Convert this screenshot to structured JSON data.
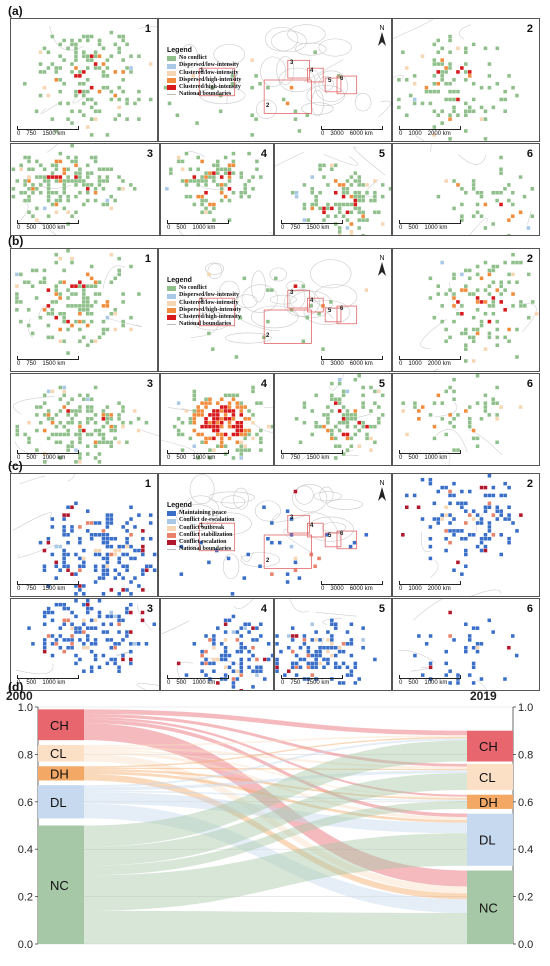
{
  "panels": [
    {
      "label": "(a)",
      "scheme": "intensity",
      "legend": {
        "title": "Legend",
        "items": [
          {
            "label": "No conflict",
            "color": "#8fbf8a"
          },
          {
            "label": "Dispersed/low-intensity",
            "color": "#a9c8e6"
          },
          {
            "label": "Clustered/low-intensity",
            "color": "#f7d6b3"
          },
          {
            "label": "Dispersed/high-intensity",
            "color": "#f08c3c"
          },
          {
            "label": "Clustered/high-intensity",
            "color": "#d7191c"
          },
          {
            "label": "National boundaries",
            "color": "#bbbbbb"
          }
        ]
      },
      "map_numbers": [
        "1",
        "2",
        "3",
        "4",
        "5",
        "6"
      ],
      "world_box_labels": [
        "1",
        "2",
        "3",
        "4",
        "5",
        "6"
      ],
      "scalebars": {
        "m1": [
          "0",
          "750",
          "1500 km"
        ],
        "world": [
          "0",
          "3000",
          "6000 km"
        ],
        "m2": [
          "0",
          "1000",
          "2000 km"
        ],
        "m3": [
          "0",
          "500",
          "1000 km"
        ],
        "m4": [
          "0",
          "500",
          "1000 km"
        ],
        "m5": [
          "0",
          "750",
          "1500 km"
        ],
        "m6": [
          "0",
          "500",
          "1000 km"
        ]
      }
    },
    {
      "label": "(b)",
      "scheme": "intensity",
      "legend": {
        "title": "Legend",
        "items": [
          {
            "label": "No conflict",
            "color": "#8fbf8a"
          },
          {
            "label": "Dispersed/low-intensity",
            "color": "#a9c8e6"
          },
          {
            "label": "Clustered/low-intensity",
            "color": "#f7d6b3"
          },
          {
            "label": "Dispersed/high-intensity",
            "color": "#f08c3c"
          },
          {
            "label": "Clustered/high-intensity",
            "color": "#d7191c"
          },
          {
            "label": "National boundaries",
            "color": "#bbbbbb"
          }
        ]
      },
      "map_numbers": [
        "1",
        "2",
        "3",
        "4",
        "5",
        "6"
      ],
      "world_box_labels": [
        "1",
        "2",
        "3",
        "4",
        "5",
        "6"
      ],
      "scalebars": {
        "m1": [
          "0",
          "750",
          "1500 km"
        ],
        "world": [
          "0",
          "3000",
          "6000 km"
        ],
        "m2": [
          "0",
          "1000",
          "2000 km"
        ],
        "m3": [
          "0",
          "500",
          "1000 km"
        ],
        "m4": [
          "0",
          "500",
          "1000 km"
        ],
        "m5": [
          "0",
          "750",
          "1500 km"
        ],
        "m6": [
          "0",
          "500",
          "1000 km"
        ]
      }
    },
    {
      "label": "(c)",
      "scheme": "change",
      "legend": {
        "title": "Legend",
        "items": [
          {
            "label": "Maintaining peace",
            "color": "#3a6fc9"
          },
          {
            "label": "Conflict de-escalation",
            "color": "#a9c8e6"
          },
          {
            "label": "Conflict outbreak",
            "color": "#f7d6b3"
          },
          {
            "label": "Conflict stabilization",
            "color": "#e8826a"
          },
          {
            "label": "Conflict escalation",
            "color": "#b2182b"
          },
          {
            "label": "National boundaries",
            "color": "#bbbbbb"
          }
        ]
      },
      "map_numbers": [
        "1",
        "2",
        "3",
        "4",
        "5",
        "6"
      ],
      "world_box_labels": [
        "1",
        "2",
        "3",
        "4",
        "5",
        "6"
      ],
      "scalebars": {
        "m1": [
          "0",
          "750",
          "1500 km"
        ],
        "world": [
          "0",
          "3000",
          "6000 km"
        ],
        "m2": [
          "0",
          "1000",
          "2000 km"
        ],
        "m3": [
          "0",
          "500",
          "1000 km"
        ],
        "m4": [
          "0",
          "500",
          "1000 km"
        ],
        "m5": [
          "0",
          "750",
          "1500 km"
        ],
        "m6": [
          "0",
          "500",
          "1000 km"
        ]
      }
    }
  ],
  "north_label": "N",
  "sankey": {
    "label": "(d)",
    "left_year": "2000",
    "right_year": "2019",
    "axis_ticks": [
      "0.0",
      "0.2",
      "0.4",
      "0.6",
      "0.8",
      "1.0"
    ],
    "left_nodes": [
      {
        "name": "CH",
        "from": 0.86,
        "to": 0.99,
        "color": "#e8676e"
      },
      {
        "name": "CL",
        "from": 0.77,
        "to": 0.84,
        "color": "#fbe0c6"
      },
      {
        "name": "DH",
        "from": 0.69,
        "to": 0.75,
        "color": "#f3a865"
      },
      {
        "name": "DL",
        "from": 0.53,
        "to": 0.67,
        "color": "#c6d9ee"
      },
      {
        "name": "NC",
        "from": 0.0,
        "to": 0.5,
        "color": "#a7c8a6"
      }
    ],
    "right_nodes": [
      {
        "name": "CH",
        "from": 0.77,
        "to": 0.9,
        "color": "#e8676e"
      },
      {
        "name": "CL",
        "from": 0.65,
        "to": 0.76,
        "color": "#fbe0c6"
      },
      {
        "name": "DH",
        "from": 0.57,
        "to": 0.63,
        "color": "#f3a865"
      },
      {
        "name": "DL",
        "from": 0.33,
        "to": 0.55,
        "color": "#c6d9ee"
      },
      {
        "name": "NC",
        "from": 0.0,
        "to": 0.31,
        "color": "#a7c8a6"
      }
    ]
  }
}
